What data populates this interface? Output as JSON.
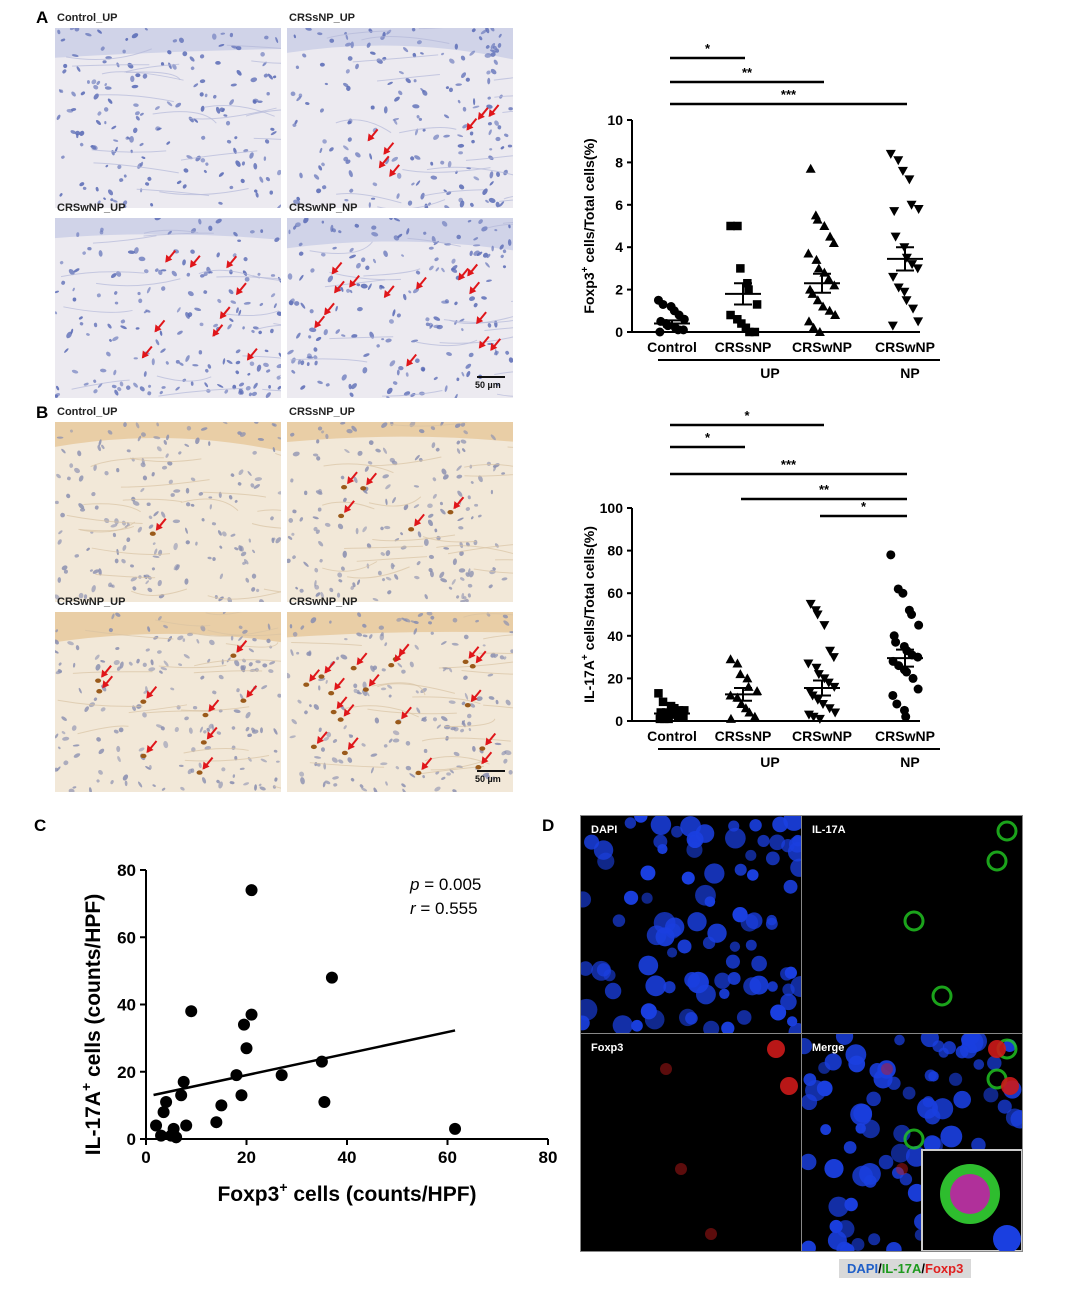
{
  "panels": {
    "A": {
      "letter": "A",
      "micrographs": [
        {
          "label": "Control_UP",
          "arrows": []
        },
        {
          "label": "CRSsNP_UP",
          "arrows": [
            1,
            2,
            3,
            4,
            5,
            6,
            7
          ]
        },
        {
          "label": "CRSwNP_UP",
          "arrows": [
            1,
            2,
            3,
            4,
            5,
            6,
            7,
            8,
            9
          ]
        },
        {
          "label": "CRSwNP_NP",
          "arrows": [
            1,
            2,
            3,
            4,
            5,
            6,
            7,
            8,
            9,
            10,
            11,
            12,
            13,
            14
          ]
        }
      ],
      "scale_bar": "50 µm",
      "stain": "blue",
      "chart_data": {
        "type": "scatter",
        "ylabel_main": "Foxp3",
        "ylabel_sup": "+",
        "ylabel_rest": " cells/Total cells(%)",
        "ylim": [
          0,
          10
        ],
        "yticks": [
          "0",
          "2",
          "4",
          "6",
          "8",
          "10"
        ],
        "categories": [
          "Control",
          "CRSsNP",
          "CRSwNP",
          "CRSwNP"
        ],
        "group_labels": [
          "UP",
          "NP"
        ],
        "markers": [
          "circle",
          "square",
          "triangle-up",
          "triangle-down"
        ],
        "series": [
          {
            "values": [
              1.5,
              1.3,
              1.2,
              1.0,
              0.8,
              0.6,
              0.5,
              0.4,
              0.3,
              0.2,
              0.1,
              0.1,
              0.0
            ],
            "mean": 0.4,
            "sem": 0.15
          },
          {
            "values": [
              5.0,
              5.0,
              3.0,
              2.3,
              2.0,
              1.3,
              0.8,
              0.6,
              0.4,
              0.2,
              0.0,
              0.0
            ],
            "mean": 1.8,
            "sem": 0.5
          },
          {
            "values": [
              7.7,
              5.5,
              5.3,
              5.0,
              4.5,
              4.2,
              3.7,
              3.4,
              3.0,
              2.8,
              2.5,
              2.2,
              2.0,
              1.8,
              1.5,
              1.2,
              1.0,
              0.8,
              0.5,
              0.2,
              0.0
            ],
            "mean": 2.3,
            "sem": 0.45
          },
          {
            "values": [
              8.4,
              8.1,
              7.6,
              7.2,
              6.0,
              5.8,
              5.7,
              4.5,
              4.0,
              3.5,
              3.2,
              3.0,
              2.6,
              2.1,
              1.9,
              1.5,
              1.1,
              0.5,
              0.3
            ],
            "mean": 3.45,
            "sem": 0.55
          }
        ],
        "significance": [
          {
            "from": 0,
            "to": 1,
            "label": "*"
          },
          {
            "from": 0,
            "to": 2,
            "label": "**"
          },
          {
            "from": 0,
            "to": 3,
            "label": "***"
          }
        ]
      }
    },
    "B": {
      "letter": "B",
      "micrographs": [
        {
          "label": "Control_UP",
          "arrows": [
            1
          ]
        },
        {
          "label": "CRSsNP_UP",
          "arrows": [
            1,
            2,
            3,
            4,
            5
          ]
        },
        {
          "label": "CRSwNP_UP",
          "arrows": [
            1,
            2,
            3,
            4,
            5,
            6,
            7,
            8,
            9
          ]
        },
        {
          "label": "CRSwNP_NP",
          "arrows": [
            1,
            2,
            3,
            4,
            5,
            6,
            7,
            8,
            9,
            10,
            11,
            12,
            13,
            14,
            15,
            16,
            17,
            18
          ]
        }
      ],
      "scale_bar": "50 µm",
      "stain": "brown",
      "chart_data": {
        "type": "scatter",
        "ylabel_main": "IL-17A",
        "ylabel_sup": "+",
        "ylabel_rest": " cells/Total cells(%)",
        "ylim": [
          0,
          100
        ],
        "yticks": [
          "0",
          "20",
          "40",
          "60",
          "80",
          "100"
        ],
        "categories": [
          "Control",
          "CRSsNP",
          "CRSwNP",
          "CRSwNP"
        ],
        "group_labels": [
          "UP",
          "NP"
        ],
        "markers": [
          "square",
          "triangle-up",
          "triangle-down",
          "circle"
        ],
        "series": [
          {
            "values": [
              13,
              9,
              7,
              6,
              5,
              5,
              4,
              4,
              3,
              3,
              2,
              2,
              1,
              1,
              1
            ],
            "mean": 3.5,
            "sem": 1.0
          },
          {
            "values": [
              29,
              27,
              22,
              20,
              16,
              14,
              12,
              11,
              8,
              6,
              4,
              2,
              1
            ],
            "mean": 12.5,
            "sem": 3.0
          },
          {
            "values": [
              55,
              52,
              50,
              45,
              33,
              30,
              27,
              25,
              22,
              20,
              18,
              16,
              14,
              12,
              10,
              8,
              6,
              4,
              3,
              2,
              1
            ],
            "mean": 15.5,
            "sem": 3.5
          },
          {
            "values": [
              78,
              62,
              60,
              52,
              50,
              45,
              40,
              37,
              35,
              33,
              31,
              30,
              28,
              26,
              24,
              23,
              20,
              15,
              12,
              8,
              5,
              2
            ],
            "mean": 29.5,
            "sem": 4.0
          }
        ],
        "significance": [
          {
            "from": 0,
            "to": 1,
            "label": "*"
          },
          {
            "from": 0,
            "to": 2,
            "label": "*"
          },
          {
            "from": 0,
            "to": 3,
            "label": "***"
          },
          {
            "from": 1,
            "to": 3,
            "label": "**"
          },
          {
            "from": 2,
            "to": 3,
            "label": "*"
          }
        ]
      }
    },
    "C": {
      "letter": "C",
      "p_italic": "p",
      "p_value": " = 0.005",
      "r_italic": "r",
      "r_value": " = 0.555",
      "chart_data": {
        "type": "scatter",
        "xlabel_main": "Foxp3",
        "xlabel_sup": "+",
        "xlabel_rest": " cells (counts/HPF)",
        "ylabel_main": "IL-17A",
        "ylabel_sup": "+",
        "ylabel_rest": " cells (counts/HPF)",
        "xlim": [
          0,
          80
        ],
        "ylim": [
          0,
          80
        ],
        "xticks": [
          "0",
          "20",
          "40",
          "60",
          "80"
        ],
        "yticks": [
          "0",
          "20",
          "40",
          "60",
          "80"
        ],
        "points": [
          [
            2,
            4
          ],
          [
            3,
            1
          ],
          [
            3.5,
            8
          ],
          [
            4,
            11
          ],
          [
            5,
            1
          ],
          [
            5.5,
            3
          ],
          [
            6,
            0.5
          ],
          [
            7,
            13
          ],
          [
            7.5,
            17
          ],
          [
            8,
            4
          ],
          [
            9,
            38
          ],
          [
            14,
            5
          ],
          [
            15,
            10
          ],
          [
            18,
            19
          ],
          [
            19,
            13
          ],
          [
            19.5,
            34
          ],
          [
            20,
            27
          ],
          [
            21,
            37
          ],
          [
            21,
            74
          ],
          [
            27,
            19
          ],
          [
            35,
            23
          ],
          [
            35.5,
            11
          ],
          [
            37,
            48
          ],
          [
            61.5,
            3
          ]
        ],
        "regression": {
          "slope": 0.32,
          "intercept": 12.6,
          "x_start": 1.5,
          "x_end": 61.5
        }
      }
    },
    "D": {
      "letter": "D",
      "channels": [
        "DAPI",
        "IL-17A",
        "Foxp3",
        "Merge"
      ],
      "legend": {
        "dapi": "DAPI",
        "sep1": "/",
        "il17a": "IL-17A",
        "sep2": "/",
        "foxp3": "Foxp3"
      },
      "colors": {
        "dapi": "#1f5fc8",
        "il17a": "#2eb82e",
        "foxp3": "#e02020"
      }
    }
  }
}
